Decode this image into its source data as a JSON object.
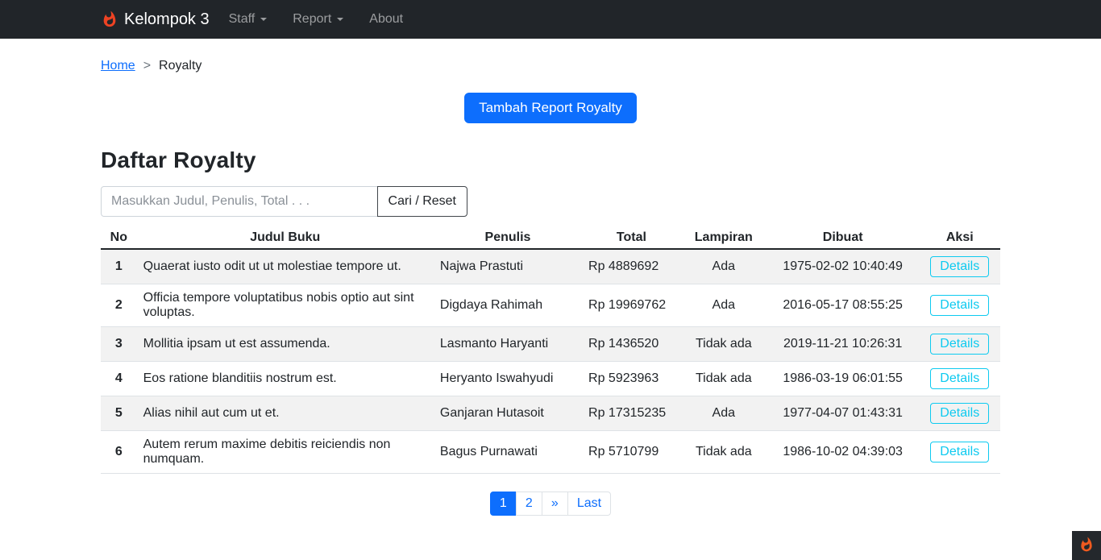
{
  "navbar": {
    "brand": "Kelompok 3",
    "items": [
      {
        "label": "Staff",
        "dropdown": true
      },
      {
        "label": "Report",
        "dropdown": true
      },
      {
        "label": "About",
        "dropdown": false
      }
    ]
  },
  "breadcrumb": {
    "home": "Home",
    "separator": ">",
    "current": "Royalty"
  },
  "actions": {
    "add_button": "Tambah Report Royalty"
  },
  "page": {
    "title": "Daftar Royalty"
  },
  "search": {
    "placeholder": "Masukkan Judul, Penulis, Total . . .",
    "button": "Cari / Reset"
  },
  "table": {
    "headers": [
      "No",
      "Judul Buku",
      "Penulis",
      "Total",
      "Lampiran",
      "Dibuat",
      "Aksi"
    ],
    "action_label": "Details",
    "rows": [
      {
        "no": "1",
        "judul": "Quaerat iusto odit ut ut molestiae tempore ut.",
        "penulis": "Najwa Prastuti",
        "total": "Rp 4889692",
        "lampiran": "Ada",
        "dibuat": "1975-02-02 10:40:49"
      },
      {
        "no": "2",
        "judul": "Officia tempore voluptatibus nobis optio aut sint voluptas.",
        "penulis": "Digdaya Rahimah",
        "total": "Rp 19969762",
        "lampiran": "Ada",
        "dibuat": "2016-05-17 08:55:25"
      },
      {
        "no": "3",
        "judul": "Mollitia ipsam ut est assumenda.",
        "penulis": "Lasmanto Haryanti",
        "total": "Rp 1436520",
        "lampiran": "Tidak ada",
        "dibuat": "2019-11-21 10:26:31"
      },
      {
        "no": "4",
        "judul": "Eos ratione blanditiis nostrum est.",
        "penulis": "Heryanto Iswahyudi",
        "total": "Rp 5923963",
        "lampiran": "Tidak ada",
        "dibuat": "1986-03-19 06:01:55"
      },
      {
        "no": "5",
        "judul": "Alias nihil aut cum ut et.",
        "penulis": "Ganjaran Hutasoit",
        "total": "Rp 17315235",
        "lampiran": "Ada",
        "dibuat": "1977-04-07 01:43:31"
      },
      {
        "no": "6",
        "judul": "Autem rerum maxime debitis reiciendis non numquam.",
        "penulis": "Bagus Purnawati",
        "total": "Rp 5710799",
        "lampiran": "Tidak ada",
        "dibuat": "1986-10-02 04:39:03"
      }
    ]
  },
  "pagination": {
    "pages": [
      {
        "label": "1",
        "active": true
      },
      {
        "label": "2",
        "active": false
      },
      {
        "label": "»",
        "active": false
      },
      {
        "label": "Last",
        "active": false
      }
    ]
  },
  "icons": {
    "brand_logo": "codeigniter-flame-icon",
    "corner_logo": "codeigniter-flame-icon"
  },
  "colors": {
    "primary": "#0d6efd",
    "info": "#0dcaf0",
    "navbar_bg": "#212529",
    "stripe": "#f2f2f2",
    "flame_brand": "#ee4323",
    "flame_toolbar": "#ef5a1f"
  }
}
